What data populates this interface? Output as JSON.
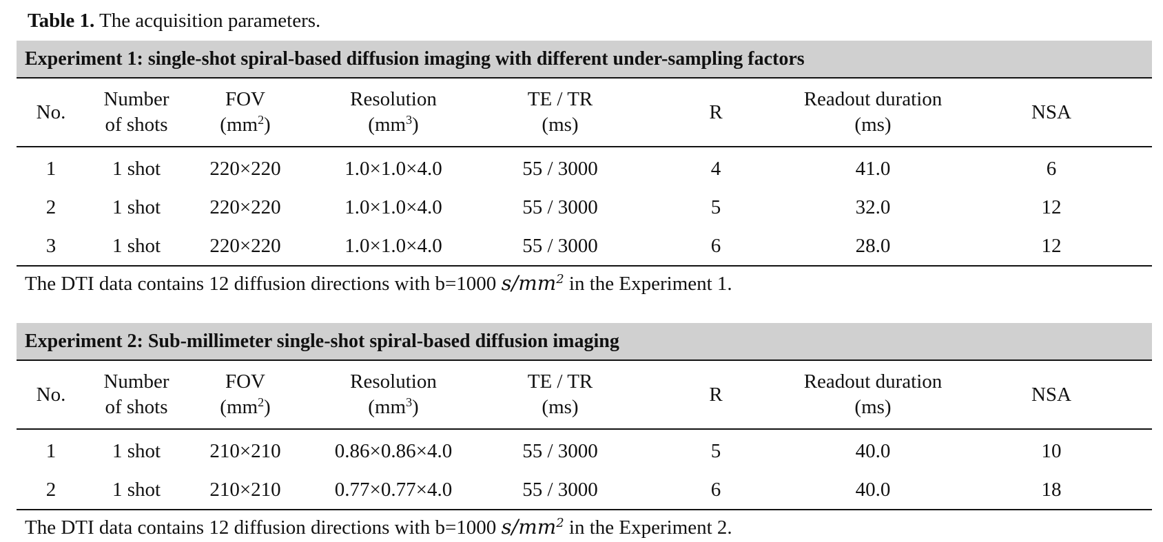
{
  "caption": {
    "label": "Table 1.",
    "text": " The acquisition parameters."
  },
  "columns": {
    "no": "No.",
    "shots_line1": "Number",
    "shots_line2": "of shots",
    "fov_line1": "FOV",
    "fov_line2_pre": "(mm",
    "fov_sup": "2",
    "fov_post": ")",
    "res_line1": "Resolution",
    "res_line2_pre": "(mm",
    "res_sup": "3",
    "res_post": ")",
    "te_line1": "TE / TR",
    "te_line2": "(ms)",
    "r": "R",
    "ro_line1": "Readout duration",
    "ro_line2": "(ms)",
    "nsa": "NSA"
  },
  "experiments": [
    {
      "title": "Experiment 1: single-shot spiral-based diffusion imaging with different under-sampling factors",
      "rows": [
        [
          "1",
          "1 shot",
          "220×220",
          "1.0×1.0×4.0",
          "55 / 3000",
          "4",
          "41.0",
          "6"
        ],
        [
          "2",
          "1 shot",
          "220×220",
          "1.0×1.0×4.0",
          "55 / 3000",
          "5",
          "32.0",
          "12"
        ],
        [
          "3",
          "1 shot",
          "220×220",
          "1.0×1.0×4.0",
          "55 / 3000",
          "6",
          "28.0",
          "12"
        ]
      ],
      "note_pre": "The DTI data contains 12 diffusion directions with b=1000 ",
      "note_unit": "s/mm",
      "note_sup": "2",
      "note_post": " in the Experiment 1."
    },
    {
      "title": "Experiment 2: Sub-millimeter single-shot spiral-based diffusion imaging",
      "rows": [
        [
          "1",
          "1 shot",
          "210×210",
          "0.86×0.86×4.0",
          "55 / 3000",
          "5",
          "40.0",
          "10"
        ],
        [
          "2",
          "1 shot",
          "210×210",
          "0.77×0.77×4.0",
          "55 / 3000",
          "6",
          "40.0",
          "18"
        ]
      ],
      "note_pre": "The DTI data contains 12 diffusion directions with b=1000 ",
      "note_unit": "s/mm",
      "note_sup": "2",
      "note_post": " in the Experiment 2."
    }
  ]
}
